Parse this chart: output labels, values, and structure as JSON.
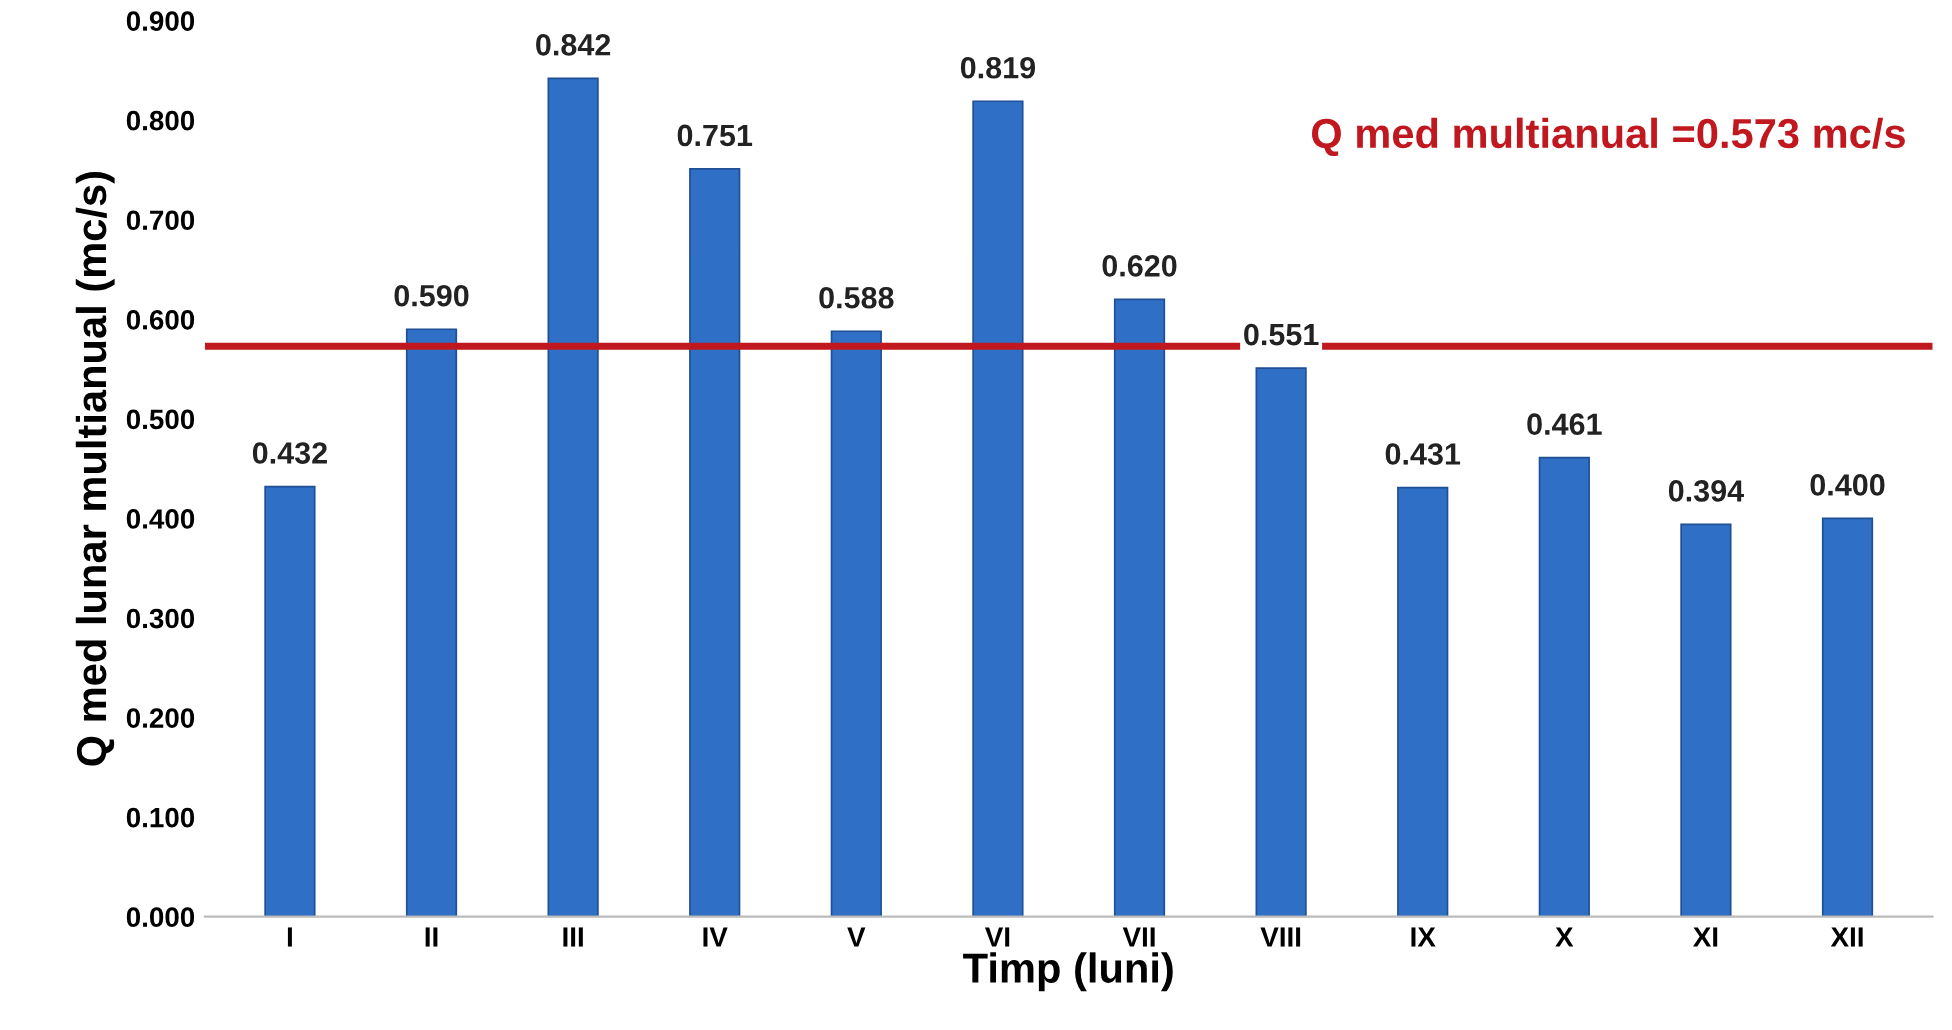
{
  "chart_data": {
    "type": "bar",
    "xlabel": "Timp (luni)",
    "ylabel": "Q med lunar multianual (mc/s)",
    "categories": [
      "I",
      "II",
      "III",
      "IV",
      "V",
      "VI",
      "VII",
      "VIII",
      "IX",
      "X",
      "XI",
      "XII"
    ],
    "values": [
      0.432,
      0.59,
      0.842,
      0.751,
      0.588,
      0.819,
      0.62,
      0.551,
      0.431,
      0.461,
      0.394,
      0.4
    ],
    "value_labels": [
      "0.432",
      "0.590",
      "0.842",
      "0.751",
      "0.588",
      "0.819",
      "0.620",
      "0.551",
      "0.431",
      "0.461",
      "0.394",
      "0.400"
    ],
    "color": "#2f6fc6",
    "ylim": [
      0,
      0.9
    ],
    "yticks": [
      {
        "value": 0,
        "label": "0.000"
      },
      {
        "value": 0.1,
        "label": "0.100"
      },
      {
        "value": 0.2,
        "label": "0.200"
      },
      {
        "value": 0.3,
        "label": "0.300"
      },
      {
        "value": 0.4,
        "label": "0.400"
      },
      {
        "value": 0.5,
        "label": "0.500"
      },
      {
        "value": 0.6,
        "label": "0.600"
      },
      {
        "value": 0.7,
        "label": "0.700"
      },
      {
        "value": 0.8,
        "label": "0.800"
      },
      {
        "value": 0.9,
        "label": "0.900"
      }
    ],
    "ref_lines": [
      {
        "axis": "y",
        "value": 0.573,
        "label": "Q med multianual =0.573 mc/s",
        "color": "#c0181e"
      }
    ],
    "grid": false,
    "legend": false
  }
}
